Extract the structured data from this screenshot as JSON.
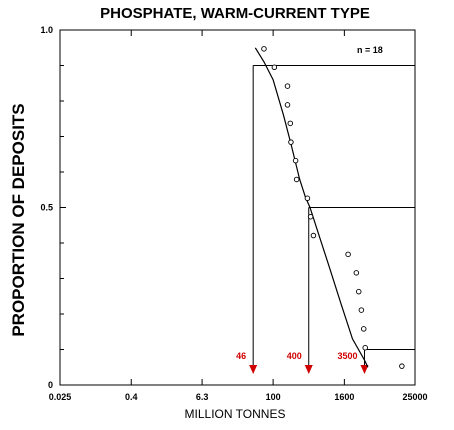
{
  "chart_data": {
    "type": "scatter",
    "title": "PHOSPHATE, WARM-CURRENT TYPE",
    "xlabel": "MILLION TONNES",
    "ylabel": "PROPORTION OF DEPOSITS",
    "x_scale": "log",
    "xlim": [
      0.025,
      25000
    ],
    "ylim": [
      0,
      1
    ],
    "x_ticks": [
      {
        "value": 0.025,
        "label": "0.025"
      },
      {
        "value": 0.4,
        "label": "0.4"
      },
      {
        "value": 6.3,
        "label": "6.3"
      },
      {
        "value": 100,
        "label": "100"
      },
      {
        "value": 1600,
        "label": "1600"
      },
      {
        "value": 25000,
        "label": "25000"
      }
    ],
    "y_ticks": [
      {
        "value": 0,
        "label": "0"
      },
      {
        "value": 0.5,
        "label": "0.5"
      },
      {
        "value": 1,
        "label": "1.0"
      }
    ],
    "annotation_n": "n = 18",
    "points": [
      {
        "x": 70,
        "y": 0.947
      },
      {
        "x": 105,
        "y": 0.895
      },
      {
        "x": 175,
        "y": 0.842
      },
      {
        "x": 175,
        "y": 0.789
      },
      {
        "x": 195,
        "y": 0.737
      },
      {
        "x": 200,
        "y": 0.684
      },
      {
        "x": 240,
        "y": 0.632
      },
      {
        "x": 250,
        "y": 0.579
      },
      {
        "x": 380,
        "y": 0.526
      },
      {
        "x": 430,
        "y": 0.474
      },
      {
        "x": 480,
        "y": 0.421
      },
      {
        "x": 1850,
        "y": 0.368
      },
      {
        "x": 2550,
        "y": 0.316
      },
      {
        "x": 2800,
        "y": 0.263
      },
      {
        "x": 3100,
        "y": 0.211
      },
      {
        "x": 3400,
        "y": 0.158
      },
      {
        "x": 3600,
        "y": 0.105
      },
      {
        "x": 15000,
        "y": 0.053
      }
    ],
    "fitted_curve": [
      {
        "x": 50,
        "y": 0.95
      },
      {
        "x": 70,
        "y": 0.91
      },
      {
        "x": 100,
        "y": 0.86
      },
      {
        "x": 150,
        "y": 0.76
      },
      {
        "x": 200,
        "y": 0.68
      },
      {
        "x": 280,
        "y": 0.58
      },
      {
        "x": 350,
        "y": 0.53
      },
      {
        "x": 420,
        "y": 0.5
      },
      {
        "x": 600,
        "y": 0.42
      },
      {
        "x": 900,
        "y": 0.33
      },
      {
        "x": 1400,
        "y": 0.23
      },
      {
        "x": 2200,
        "y": 0.13
      },
      {
        "x": 3500,
        "y": 0.07
      },
      {
        "x": 4000,
        "y": 0.05
      }
    ],
    "reference_lines": [
      {
        "proportion": 0.9,
        "tonnage": 46,
        "label": "46"
      },
      {
        "proportion": 0.5,
        "tonnage": 400,
        "label": "400"
      },
      {
        "proportion": 0.1,
        "tonnage": 3500,
        "label": "3500"
      }
    ],
    "colors": {
      "annotation": "#d00000",
      "ink": "#000000"
    },
    "grid": false
  }
}
